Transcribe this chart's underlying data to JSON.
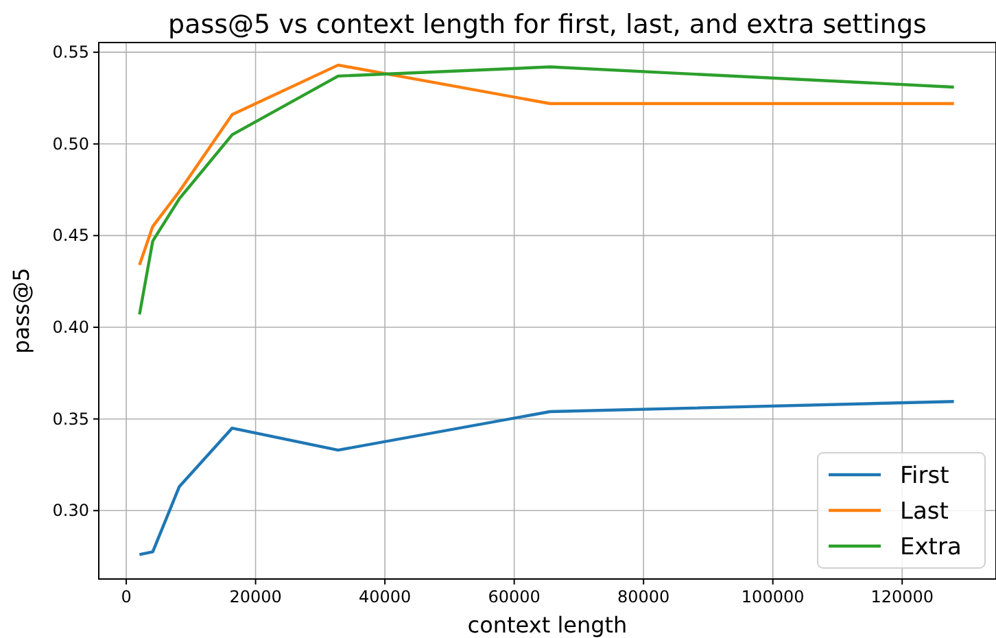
{
  "chart_data": {
    "type": "line",
    "title": "pass@5 vs context length for first, last, and extra settings",
    "xlabel": "context length",
    "ylabel": "pass@5",
    "x": [
      2048,
      4096,
      8192,
      16384,
      32768,
      65536,
      128000
    ],
    "series": [
      {
        "name": "First",
        "color": "#1f77b4",
        "values": [
          0.276,
          0.2775,
          0.313,
          0.345,
          0.333,
          0.354,
          0.3595
        ]
      },
      {
        "name": "Last",
        "color": "#ff7f0e",
        "values": [
          0.434,
          0.455,
          0.474,
          0.516,
          0.543,
          0.522,
          0.522
        ]
      },
      {
        "name": "Extra",
        "color": "#2ca02c",
        "values": [
          0.407,
          0.447,
          0.47,
          0.505,
          0.537,
          0.542,
          0.531
        ]
      }
    ],
    "xlim": [
      -4250,
      134300
    ],
    "ylim": [
      0.2627,
      0.5553
    ],
    "xticks": [
      0,
      20000,
      40000,
      60000,
      80000,
      100000,
      120000
    ],
    "yticks": [
      {
        "value": 0.3,
        "label": "0.30"
      },
      {
        "value": 0.35,
        "label": "0.35"
      },
      {
        "value": 0.4,
        "label": "0.40"
      },
      {
        "value": 0.45,
        "label": "0.45"
      },
      {
        "value": 0.5,
        "label": "0.50"
      },
      {
        "value": 0.55,
        "label": "0.55"
      }
    ],
    "grid": true,
    "legend": "bottom right",
    "marker": "none",
    "line_style": "solid"
  }
}
